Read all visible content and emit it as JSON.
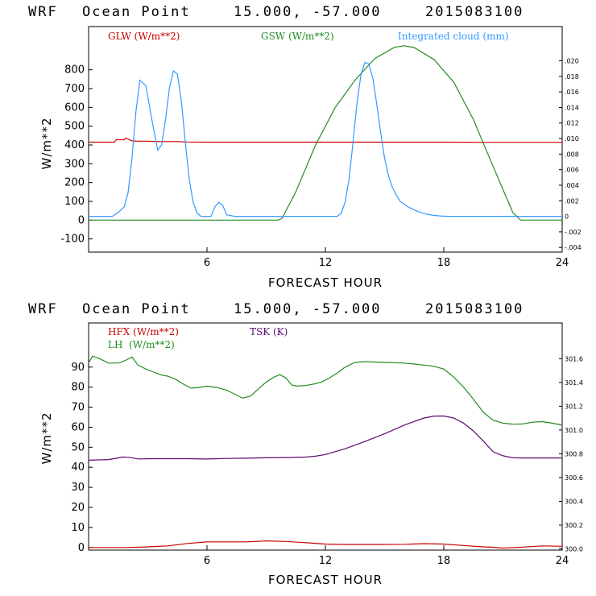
{
  "chart_data": [
    {
      "type": "line",
      "title": "WRF   Ocean Point   15.000, -57.000  2015083100",
      "title_parts": {
        "model": "WRF",
        "location": "Ocean Point",
        "coords": "15.000, -57.000",
        "date": "2015083100"
      },
      "xlabel": "FORECAST HOUR",
      "ylabel": "W/m**2",
      "xlim": [
        0,
        24
      ],
      "ylim": [
        -170,
        1030
      ],
      "xticks": [
        "6",
        "12",
        "18",
        "24"
      ],
      "yticks": [
        "800",
        "700",
        "600",
        "500",
        "400",
        "300",
        "200",
        "100",
        "0",
        "-100"
      ],
      "right_axis": {
        "ylim": [
          -0.0046,
          0.0244
        ],
        "ticks": [
          ".020",
          ".018",
          ".016",
          ".014",
          ".012",
          ".010",
          ".008",
          ".006",
          ".004",
          ".002",
          "0",
          "-.002",
          "-.004"
        ]
      },
      "series": [
        {
          "name": "GLW (W/m**2)",
          "color": "#cc0000",
          "axis": "left",
          "x": [
            0,
            1.3,
            1.4,
            1.8,
            1.9,
            2.2,
            2.5,
            3,
            3.5,
            4,
            4.5,
            5,
            6,
            8,
            10,
            12,
            14,
            16,
            18,
            20,
            22,
            24
          ],
          "y": [
            415,
            415,
            428,
            428,
            437,
            422,
            420,
            420,
            418,
            418,
            418,
            416,
            415,
            415,
            415,
            415,
            415,
            415,
            415,
            414,
            414,
            414
          ]
        },
        {
          "name": "GSW (W/m**2)",
          "color": "#228B22",
          "axis": "left",
          "x": [
            0,
            9.6,
            9.8,
            10.5,
            11.5,
            12.5,
            13.5,
            14.5,
            15.5,
            16,
            16.5,
            17.5,
            18.5,
            19.5,
            20.5,
            21.5,
            21.9,
            22,
            24
          ],
          "y": [
            0,
            0,
            10,
            150,
            400,
            600,
            745,
            860,
            920,
            928,
            918,
            855,
            735,
            535,
            285,
            40,
            0,
            0,
            0
          ]
        },
        {
          "name": "Integrated cloud (mm)",
          "color": "#3399ff",
          "axis": "right",
          "x": [
            0,
            1.2,
            1.5,
            1.8,
            2.0,
            2.2,
            2.4,
            2.6,
            2.9,
            3.2,
            3.5,
            3.7,
            3.9,
            4.1,
            4.3,
            4.5,
            4.7,
            4.9,
            5.1,
            5.3,
            5.5,
            5.7,
            5.9,
            6.2,
            6.4,
            6.6,
            6.8,
            7.0,
            7.4,
            12.6,
            12.8,
            13.0,
            13.2,
            13.4,
            13.6,
            13.8,
            14.0,
            14.2,
            14.4,
            14.6,
            14.8,
            15.0,
            15.2,
            15.4,
            15.6,
            15.8,
            16.2,
            16.6,
            17.0,
            17.4,
            17.8,
            18.2,
            18.6,
            19.0,
            19.5,
            24
          ],
          "y": [
            0,
            0,
            0.0005,
            0.0012,
            0.003,
            0.0075,
            0.0135,
            0.0175,
            0.0168,
            0.0125,
            0.0085,
            0.0092,
            0.0125,
            0.0165,
            0.0187,
            0.0183,
            0.0148,
            0.0095,
            0.0048,
            0.0018,
            0.0004,
            0,
            0,
            0,
            0.0012,
            0.0018,
            0.0014,
            0.0002,
            0,
            0,
            0.0004,
            0.0018,
            0.0048,
            0.0095,
            0.0145,
            0.0182,
            0.0198,
            0.0196,
            0.0178,
            0.0145,
            0.0108,
            0.0075,
            0.0052,
            0.0037,
            0.0027,
            0.0019,
            0.0012,
            0.0007,
            0.00035,
            0.00015,
            5e-05,
            0,
            0,
            0,
            0,
            0
          ]
        }
      ],
      "legend": [
        {
          "label": "GLW (W/m**2)",
          "color": "#cc0000"
        },
        {
          "label": "GSW (W/m**2)",
          "color": "#228B22"
        },
        {
          "label": "Integrated cloud (mm)",
          "color": "#3399ff"
        }
      ]
    },
    {
      "type": "line",
      "title": "WRF   Ocean Point   15.000, -57.000  2015083100",
      "title_parts": {
        "model": "WRF",
        "location": "Ocean Point",
        "coords": "15.000, -57.000",
        "date": "2015083100"
      },
      "xlabel": "FORECAST HOUR",
      "ylabel": "W/m**2",
      "xlim": [
        0,
        24
      ],
      "ylim": [
        -1.3,
        112
      ],
      "xticks": [
        "6",
        "12",
        "18",
        "24"
      ],
      "yticks": [
        "90",
        "80",
        "70",
        "60",
        "50",
        "40",
        "30",
        "20",
        "10",
        "0"
      ],
      "right_axis": {
        "ylim": [
          299.99,
          301.9
        ],
        "ticks": [
          "301.6",
          "301.4",
          "301.2",
          "301.0",
          "300.8",
          "300.6",
          "300.4",
          "300.2",
          "300.0"
        ]
      },
      "series": [
        {
          "name": "HFX (W/m**2)",
          "color": "#cc0000",
          "axis": "left",
          "x": [
            0,
            1.0,
            2.0,
            3.0,
            4.0,
            5.0,
            6.0,
            7.0,
            8.0,
            9.0,
            10.0,
            11.0,
            12.0,
            13.0,
            14.0,
            15.0,
            16.0,
            17.0,
            18.0,
            19.0,
            20.0,
            20.5,
            21.0,
            22.0,
            23.0,
            24.0
          ],
          "y": [
            0,
            0,
            0,
            0.3,
            0.8,
            2.0,
            2.8,
            2.8,
            2.8,
            3.3,
            3.0,
            2.4,
            1.7,
            1.5,
            1.5,
            1.5,
            1.6,
            1.9,
            1.7,
            1.0,
            0.3,
            0.1,
            -0.3,
            0.2,
            0.8,
            0.6
          ]
        },
        {
          "name": "LH (W/m**2)",
          "color": "#228B22",
          "axis": "left",
          "x": [
            0,
            0.2,
            0.6,
            1.0,
            1.3,
            1.6,
            1.9,
            2.2,
            2.5,
            2.9,
            3.3,
            3.7,
            4.0,
            4.4,
            4.8,
            5.2,
            5.6,
            6.0,
            6.5,
            7.0,
            7.4,
            7.8,
            8.2,
            8.6,
            9.0,
            9.4,
            9.7,
            10.0,
            10.3,
            10.6,
            11.0,
            11.4,
            11.8,
            12.2,
            12.6,
            13.0,
            13.5,
            14.0,
            15.0,
            16.0,
            16.5,
            17.0,
            17.5,
            18.0,
            18.5,
            19.0,
            19.5,
            20.0,
            20.5,
            21.0,
            21.5,
            22.0,
            22.5,
            23.0,
            23.5,
            24.0
          ],
          "y": [
            92,
            95.5,
            94,
            92,
            92,
            92.2,
            93.5,
            95,
            91,
            89,
            87.5,
            86,
            85.5,
            84,
            81.5,
            79.5,
            79.8,
            80.5,
            79.8,
            78.5,
            76.5,
            74.5,
            75.5,
            79,
            82.5,
            85,
            86.2,
            84.5,
            81,
            80.5,
            80.8,
            81.5,
            82.5,
            84.5,
            87,
            90,
            92.3,
            92.7,
            92.3,
            92,
            91.5,
            91,
            90.4,
            89,
            85,
            80,
            74,
            67.5,
            63.5,
            62,
            61.5,
            61.6,
            62.5,
            62.8,
            62,
            61
          ]
        },
        {
          "name": "TSK (K)",
          "color": "#5a0a6e",
          "axis": "right",
          "x": [
            0,
            1.0,
            1.5,
            1.7,
            2.0,
            2.5,
            3.5,
            5.0,
            6.0,
            7.0,
            8.0,
            9.0,
            10.0,
            11.0,
            11.5,
            12.0,
            13.0,
            14.0,
            15.0,
            16.0,
            17.0,
            17.5,
            18.0,
            18.5,
            19.0,
            19.5,
            20.0,
            20.5,
            21.0,
            21.5,
            22.0,
            24.0
          ],
          "y": [
            300.746,
            300.751,
            300.765,
            300.772,
            300.771,
            300.757,
            300.759,
            300.759,
            300.756,
            300.761,
            300.763,
            300.766,
            300.768,
            300.772,
            300.78,
            300.794,
            300.842,
            300.903,
            300.968,
            301.041,
            301.101,
            301.117,
            301.118,
            301.101,
            301.058,
            300.992,
            300.907,
            300.817,
            300.783,
            300.766,
            300.765,
            300.765
          ]
        }
      ],
      "legend": [
        {
          "label": "HFX (W/m**2)",
          "color": "#cc0000"
        },
        {
          "label": "LH  (W/m**2)",
          "color": "#228B22"
        },
        {
          "label": "TSK (K)",
          "color": "#5a0a6e"
        }
      ]
    }
  ]
}
